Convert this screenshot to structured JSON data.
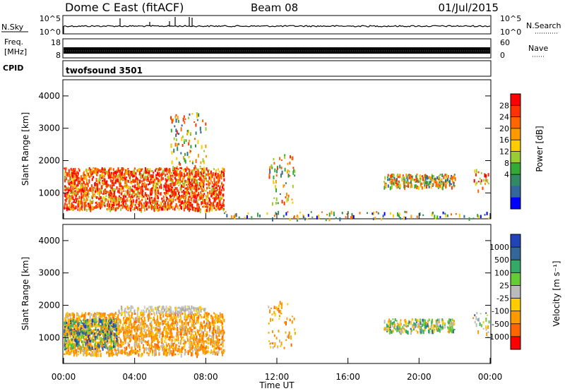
{
  "header": {
    "station": "Dome C East (fitACF)",
    "beam": "Beam 08",
    "date": "01/Jul/2015"
  },
  "strips": {
    "sky": {
      "label": "N.Sky",
      "left_ticks": [
        "10^5",
        "10^0"
      ],
      "right_label": "N.Search",
      "right_ticks": [
        "10^5",
        "10^0"
      ]
    },
    "freq": {
      "label": "Freq.",
      "unit": "[MHz]",
      "left_ticks": [
        "18",
        "8"
      ],
      "right_label": "Nave",
      "right_ticks": [
        "60",
        "0"
      ]
    },
    "cpid": {
      "label": "CPID",
      "text": "twofsound 3501"
    }
  },
  "chart_data": [
    {
      "type": "heatmap",
      "name": "power",
      "ylabel": "Slant Range [km]",
      "ylim": [
        200,
        4500
      ],
      "yticks": [
        {
          "v": 1000,
          "t": "1000"
        },
        {
          "v": 2000,
          "t": "2000"
        },
        {
          "v": 3000,
          "t": "3000"
        },
        {
          "v": 4000,
          "t": "4000"
        }
      ],
      "colorbar": {
        "label": "Power [dB]",
        "ticks": [
          "28",
          "24",
          "20",
          "16",
          "12",
          "8",
          "4"
        ],
        "colors": [
          "#ff0000",
          "#ff3300",
          "#ff6600",
          "#ff9900",
          "#ffcc00",
          "#99cc33",
          "#33aa33",
          "#338866",
          "#336699",
          "#0000ff"
        ]
      },
      "regions": [
        {
          "x": [
            0.0,
            9.0
          ],
          "y": [
            500,
            1800
          ],
          "level": "high"
        },
        {
          "x": [
            6.0,
            8.0
          ],
          "y": [
            1800,
            3500
          ],
          "level": "mixed"
        },
        {
          "x": [
            11.5,
            13.0
          ],
          "y": [
            700,
            2200
          ],
          "level": "mixed"
        },
        {
          "x": [
            18.0,
            22.0
          ],
          "y": [
            1200,
            1600
          ],
          "level": "mixed"
        },
        {
          "x": [
            23.0,
            24.0
          ],
          "y": [
            1000,
            1800
          ],
          "level": "high"
        },
        {
          "x": [
            9.0,
            24.0
          ],
          "y": [
            200,
            450
          ],
          "level": "low"
        }
      ]
    },
    {
      "type": "heatmap",
      "name": "velocity",
      "ylabel": "Slant Range [km]",
      "ylim": [
        200,
        4500
      ],
      "yticks": [
        {
          "v": 1000,
          "t": "1000"
        },
        {
          "v": 2000,
          "t": "2000"
        },
        {
          "v": 3000,
          "t": "3000"
        },
        {
          "v": 4000,
          "t": "4000"
        }
      ],
      "colorbar": {
        "label": "Velocity [m s⁻¹]",
        "ticks": [
          "1000",
          "500",
          "100",
          "25",
          "-25",
          "-100",
          "-500",
          "-1000"
        ],
        "colors": [
          "#2244bb",
          "#336699",
          "#33aa66",
          "#66cc33",
          "#bbbbbb",
          "#ffcc00",
          "#ff9900",
          "#ff6600",
          "#ff0000"
        ]
      },
      "regions": [
        {
          "x": [
            0.0,
            9.0
          ],
          "y": [
            500,
            1800
          ],
          "level": "negative"
        },
        {
          "x": [
            0.0,
            3.0
          ],
          "y": [
            700,
            1600
          ],
          "level": "positive"
        },
        {
          "x": [
            3.0,
            8.0
          ],
          "y": [
            1800,
            2000
          ],
          "level": "near-zero"
        },
        {
          "x": [
            11.5,
            13.0
          ],
          "y": [
            700,
            2200
          ],
          "level": "negative"
        },
        {
          "x": [
            18.0,
            22.0
          ],
          "y": [
            1200,
            1600
          ],
          "level": "mixed"
        },
        {
          "x": [
            23.0,
            24.0
          ],
          "y": [
            1000,
            1800
          ],
          "level": "mixed"
        }
      ]
    }
  ],
  "xaxis": {
    "label": "Time UT",
    "range": [
      0,
      24
    ],
    "ticks": [
      {
        "v": 0,
        "t": "00:00"
      },
      {
        "v": 4,
        "t": "04:00"
      },
      {
        "v": 8,
        "t": "08:00"
      },
      {
        "v": 12,
        "t": "12:00"
      },
      {
        "v": 16,
        "t": "16:00"
      },
      {
        "v": 20,
        "t": "20:00"
      },
      {
        "v": 24,
        "t": "00:00"
      }
    ]
  }
}
